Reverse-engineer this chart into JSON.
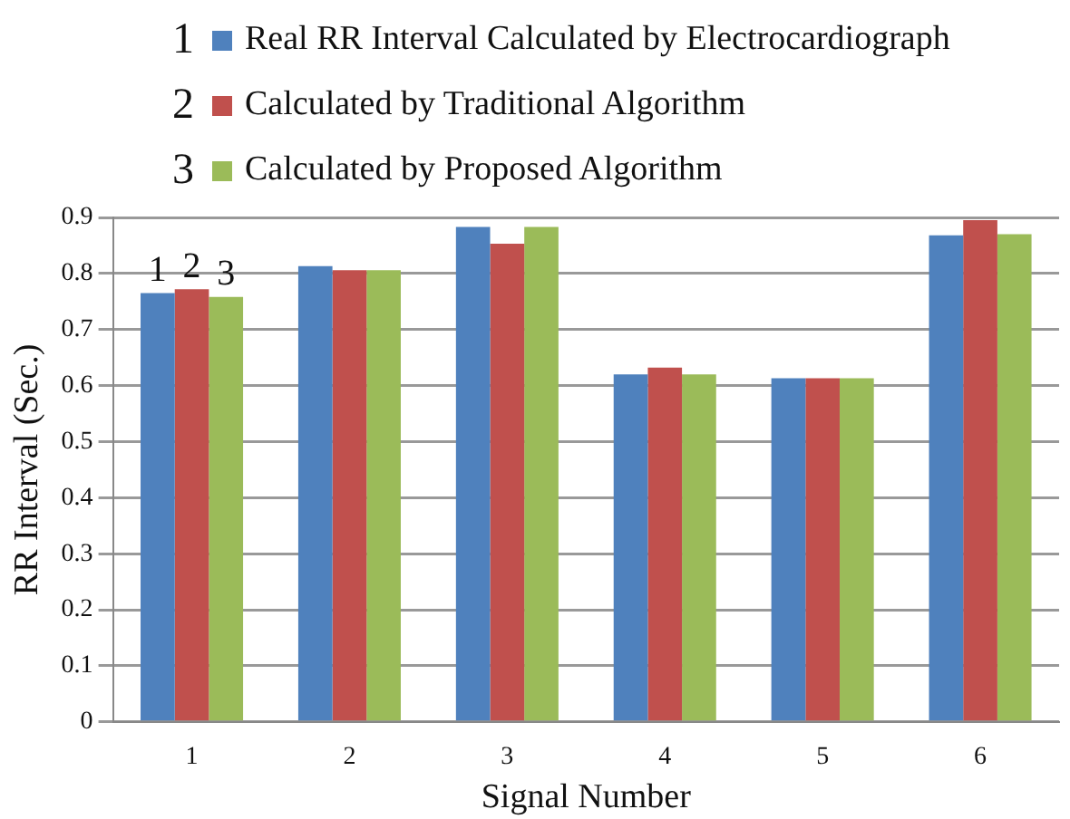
{
  "chart_data": {
    "type": "bar",
    "xlabel": "Signal Number",
    "ylabel": "RR Interval (Sec.)",
    "categories": [
      "1",
      "2",
      "3",
      "4",
      "5",
      "6"
    ],
    "series": [
      {
        "name": "Real RR Interval Calculated by Electrocardiograph",
        "color": "#4f81bd",
        "values": [
          0.765,
          0.813,
          0.883,
          0.62,
          0.613,
          0.868
        ]
      },
      {
        "name": "Calculated by Traditional Algorithm",
        "color": "#c0504d",
        "values": [
          0.772,
          0.806,
          0.853,
          0.632,
          0.613,
          0.895
        ]
      },
      {
        "name": "Calculated by Proposed Algorithm",
        "color": "#9bbb59",
        "values": [
          0.758,
          0.806,
          0.883,
          0.62,
          0.613,
          0.87
        ]
      }
    ],
    "ylim": [
      0,
      0.9
    ],
    "yticks": [
      0,
      0.1,
      0.2,
      0.3,
      0.4,
      0.5,
      0.6,
      0.7,
      0.8,
      0.9
    ],
    "grid": "y",
    "legend": "top",
    "annotations": [
      {
        "text": "1",
        "x": "1",
        "y": 0.765
      },
      {
        "text": "2",
        "x": "1",
        "y": 0.772
      },
      {
        "text": "3",
        "x": "1",
        "y": 0.758
      }
    ]
  }
}
